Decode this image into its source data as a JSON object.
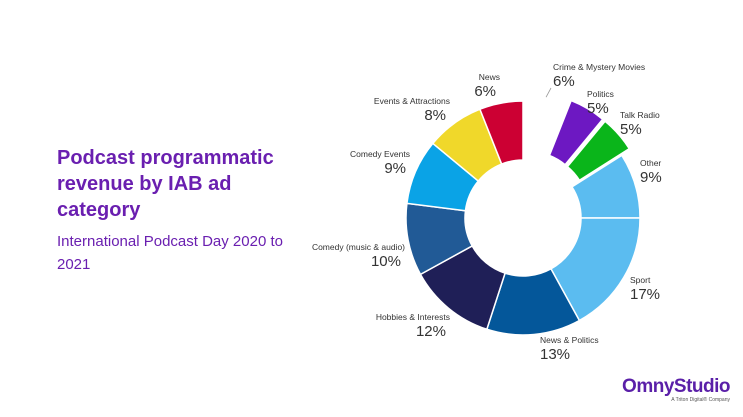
{
  "title": "Podcast programmatic revenue by IAB ad category",
  "subtitle": "International Podcast Day 2020 to 2021",
  "brand": {
    "name": "OmnyStudio",
    "tagline": "A Triton Digital® Company"
  },
  "chart_data": {
    "type": "pie",
    "donut": true,
    "slices": [
      {
        "label": "Crime & Mystery Movies",
        "value": 6,
        "pct": "6%",
        "color": "#ffffff",
        "exploded": false
      },
      {
        "label": "Politics",
        "value": 5,
        "pct": "5%",
        "color": "#6d18c2",
        "exploded": true
      },
      {
        "label": "Talk Radio",
        "value": 5,
        "pct": "5%",
        "color": "#0ab51a",
        "exploded": true
      },
      {
        "label": "Other",
        "value": 9,
        "pct": "9%",
        "color": "#5bbcf0",
        "exploded": false
      },
      {
        "label": "Sport",
        "value": 17,
        "pct": "17%",
        "color": "#5bbcf0",
        "exploded": false
      },
      {
        "label": "News & Politics",
        "value": 13,
        "pct": "13%",
        "color": "#04579a",
        "exploded": false
      },
      {
        "label": "Hobbies & Interests",
        "value": 12,
        "pct": "12%",
        "color": "#1f1f57",
        "exploded": false
      },
      {
        "label": "Comedy (music & audio)",
        "value": 10,
        "pct": "10%",
        "color": "#215a96",
        "exploded": false
      },
      {
        "label": "Comedy Events",
        "value": 9,
        "pct": "9%",
        "color": "#0aa3e6",
        "exploded": false
      },
      {
        "label": "Events & Attractions",
        "value": 8,
        "pct": "8%",
        "color": "#f0d82a",
        "exploded": false
      },
      {
        "label": "News",
        "value": 6,
        "pct": "6%",
        "color": "#cc0033",
        "exploded": false
      }
    ]
  }
}
